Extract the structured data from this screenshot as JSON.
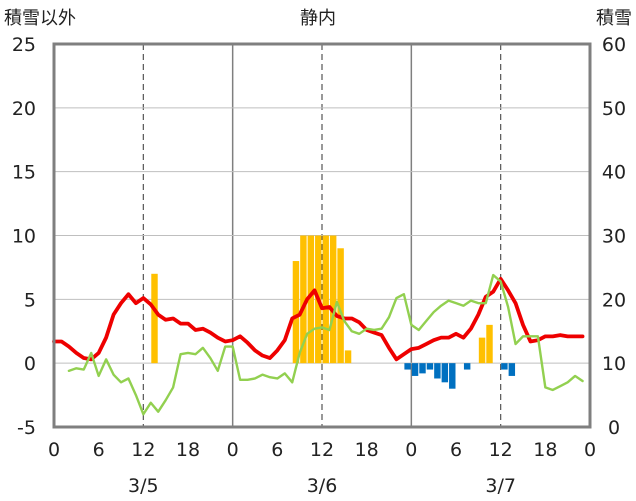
{
  "chart_data": {
    "type": "bar+line",
    "title": "静内",
    "left_axis": {
      "label": "積雪以外",
      "ylim": [
        -5,
        25
      ],
      "ticks": [
        "25",
        "20",
        "15",
        "10",
        "5",
        "0",
        "-5"
      ]
    },
    "right_axis": {
      "label": "積雪",
      "ylim": [
        0,
        60
      ],
      "ticks": [
        "60",
        "50",
        "40",
        "30",
        "20",
        "10",
        "0"
      ]
    },
    "x_axis": {
      "hours": [
        "0",
        "6",
        "12",
        "18",
        "0",
        "6",
        "12",
        "18",
        "0",
        "6",
        "12",
        "18",
        "0"
      ],
      "dates": [
        "3/5",
        "3/6",
        "3/7"
      ]
    },
    "grid": true,
    "colors": {
      "red_line": "#ee0000",
      "green_line": "#92d050",
      "orange_bars": "#ffc000",
      "blue_bars": "#0070c0",
      "purple_line": "#7030a0",
      "frame": "#7f7f7f"
    },
    "series": [
      {
        "color": "red",
        "x": [
          0,
          1,
          2,
          3,
          4,
          5,
          6,
          7,
          8,
          9,
          10,
          11,
          12,
          13,
          14,
          15,
          16,
          17,
          18,
          19,
          20,
          21,
          22,
          23,
          24,
          25,
          26,
          27,
          28,
          29,
          30,
          31,
          32,
          33,
          34,
          35,
          36,
          37,
          38,
          39,
          40,
          41,
          42,
          43,
          44,
          45,
          46,
          47,
          48,
          49,
          50,
          51,
          52,
          53,
          54,
          55,
          56,
          57,
          58,
          59,
          60,
          61,
          62,
          63,
          64,
          65,
          66,
          67,
          68,
          69,
          70,
          71
        ],
        "values": [
          1.7,
          1.7,
          1.3,
          0.8,
          0.4,
          0.3,
          0.8,
          2,
          3.8,
          4.7,
          5.4,
          4.7,
          5.1,
          4.6,
          3.8,
          3.4,
          3.5,
          3.1,
          3.1,
          2.6,
          2.7,
          2.4,
          2.0,
          1.7,
          1.8,
          2.1,
          1.6,
          1.0,
          0.6,
          0.4,
          1.0,
          1.8,
          3.5,
          3.8,
          5.0,
          5.7,
          4.3,
          4.4,
          3.7,
          3.5,
          3.5,
          3.2,
          2.6,
          2.4,
          2.2,
          1.2,
          0.3,
          0.7,
          1.1,
          1.2,
          1.5,
          1.8,
          2.0,
          2.0,
          2.3,
          2.0,
          2.7,
          3.8,
          5.2,
          5.6,
          6.6,
          5.7,
          4.7,
          3.0,
          1.7,
          1.8,
          2.1,
          2.1,
          2.2,
          2.1,
          2.1,
          2.1
        ]
      },
      {
        "color": "green",
        "x": [
          2,
          3,
          4,
          5,
          6,
          7,
          8,
          9,
          10,
          11,
          12,
          13,
          14,
          15,
          16,
          17,
          18,
          19,
          20,
          21,
          22,
          23,
          24,
          25,
          26,
          27,
          28,
          29,
          30,
          31,
          32,
          33,
          34,
          35,
          36,
          37,
          38,
          39,
          40,
          41,
          42,
          43,
          44,
          45,
          46,
          47,
          48,
          49,
          50,
          51,
          52,
          53,
          54,
          55,
          56,
          57,
          58,
          59,
          60,
          61,
          62,
          63,
          64,
          65,
          66,
          67,
          68,
          69,
          70,
          71
        ],
        "values": [
          -0.6,
          -0.4,
          -0.5,
          0.8,
          -1.0,
          0.3,
          -0.9,
          -1.5,
          -1.2,
          -2.5,
          -4.0,
          -3.1,
          -3.8,
          -2.9,
          -1.9,
          0.7,
          0.8,
          0.7,
          1.2,
          0.4,
          -0.6,
          1.3,
          1.3,
          -1.3,
          -1.3,
          -1.2,
          -0.9,
          -1.1,
          -1.2,
          -0.8,
          -1.5,
          0.8,
          2.3,
          2.7,
          2.8,
          2.6,
          4.8,
          3.3,
          2.5,
          2.3,
          2.7,
          2.6,
          2.7,
          3.6,
          5.1,
          5.4,
          3.0,
          2.6,
          3.3,
          4.0,
          4.5,
          4.9,
          4.7,
          4.5,
          4.9,
          4.7,
          4.7,
          6.9,
          6.4,
          4.4,
          1.5,
          2.1,
          2.1,
          2.1,
          -1.9,
          -2.1,
          -1.8,
          -1.5,
          -1.0,
          -1.4
        ]
      },
      {
        "color": "purple",
        "x": [
          0,
          72
        ],
        "values": [
          -5,
          -5
        ]
      }
    ],
    "bars": [
      {
        "color": "orange",
        "x": [
          13,
          32,
          33,
          34,
          35,
          36,
          37,
          38,
          39,
          57,
          58
        ],
        "values": [
          7.0,
          8.0,
          10.0,
          10.0,
          10.0,
          10.0,
          10.0,
          9.0,
          1.0,
          2.0,
          3.0
        ]
      },
      {
        "color": "blue",
        "x": [
          47,
          48,
          49,
          50,
          51,
          52,
          53,
          55,
          60,
          61
        ],
        "values": [
          -0.5,
          -1.0,
          -0.8,
          -0.5,
          -1.2,
          -1.5,
          -2.0,
          -0.5,
          -0.5,
          -1.0
        ]
      }
    ]
  }
}
